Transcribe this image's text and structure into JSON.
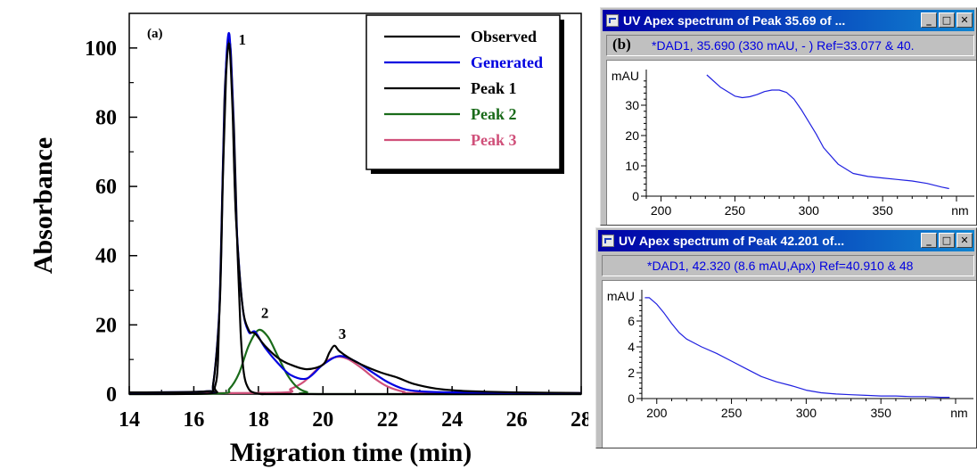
{
  "chart_data": [
    {
      "type": "line",
      "panel_label": "(a)",
      "xlabel": "Migration time (min)",
      "ylabel": "Absorbance",
      "xlim": [
        14,
        28
      ],
      "ylim": [
        0,
        110
      ],
      "xticks": [
        14,
        16,
        18,
        20,
        22,
        24,
        26,
        28
      ],
      "yticks": [
        0,
        20,
        40,
        60,
        80,
        100
      ],
      "legend_position": "top-right",
      "peak_labels": [
        {
          "text": "1",
          "x": 17.5,
          "y": 101
        },
        {
          "text": "2",
          "x": 18.2,
          "y": 22
        },
        {
          "text": "3",
          "x": 20.6,
          "y": 16
        }
      ],
      "series": [
        {
          "name": "Observed",
          "color": "#000000",
          "x": [
            14,
            16.4,
            16.6,
            16.8,
            16.9,
            17.0,
            17.1,
            17.2,
            17.3,
            17.5,
            17.7,
            17.9,
            18.2,
            18.6,
            19.0,
            19.5,
            20.0,
            20.2,
            20.35,
            20.5,
            20.8,
            21.2,
            21.8,
            22.3,
            22.8,
            23.5,
            24.2,
            25.0,
            26.0,
            28.0
          ],
          "y": [
            0.5,
            0.8,
            3,
            25,
            62,
            92,
            101,
            82,
            52,
            26,
            18.5,
            17.5,
            14,
            10.5,
            8.5,
            7.2,
            8.5,
            12,
            14,
            12.5,
            10.5,
            8.5,
            6.2,
            4.8,
            3,
            1.6,
            1.0,
            0.7,
            0.5,
            0.3
          ]
        },
        {
          "name": "Generated",
          "color": "#0000e0",
          "x": [
            14,
            16.4,
            16.6,
            16.8,
            16.9,
            17.0,
            17.1,
            17.2,
            17.3,
            17.5,
            17.7,
            17.9,
            18.2,
            18.6,
            19.0,
            19.5,
            20.0,
            20.5,
            21.0,
            21.5,
            22.0,
            22.5,
            23.0,
            24.0,
            28.0
          ],
          "y": [
            0.5,
            0.8,
            3,
            26,
            64,
            95,
            104,
            85,
            53,
            26,
            18,
            18,
            13.5,
            9,
            5.5,
            4.5,
            8.5,
            11,
            9.5,
            6.5,
            3.5,
            1.5,
            0.8,
            0.5,
            0.3
          ]
        },
        {
          "name": "Peak 1",
          "color": "#000000",
          "x": [
            14,
            16.5,
            16.65,
            16.75,
            16.85,
            16.95,
            17.05,
            17.1,
            17.15,
            17.25,
            17.35,
            17.45,
            17.55,
            17.7,
            17.9,
            18.2,
            19.0,
            28.0
          ],
          "y": [
            0,
            0.2,
            2,
            10,
            45,
            85,
            101,
            102,
            98,
            75,
            42,
            18,
            6,
            1.5,
            0.3,
            0,
            0,
            0
          ]
        },
        {
          "name": "Peak 2",
          "color": "#1a6b1a",
          "x": [
            14,
            16.8,
            17.1,
            17.4,
            17.7,
            18.0,
            18.3,
            18.6,
            18.9,
            19.2,
            19.5,
            20.0,
            28.0
          ],
          "y": [
            0,
            0.2,
            1.5,
            6,
            14,
            18.5,
            16.5,
            11,
            5.5,
            2,
            0.6,
            0,
            0
          ]
        },
        {
          "name": "Peak 3",
          "color": "#d0507a",
          "x": [
            14,
            18.6,
            19.0,
            19.4,
            19.8,
            20.2,
            20.5,
            20.8,
            21.2,
            21.6,
            22.0,
            22.5,
            23.0,
            28.0
          ],
          "y": [
            0.3,
            0.4,
            1.5,
            3.5,
            7,
            10,
            10.8,
            10,
            7.5,
            4.5,
            2.2,
            0.7,
            0.3,
            0.3
          ]
        }
      ]
    },
    {
      "type": "line",
      "panel_label": "(b)",
      "ylabel": "mAU",
      "xlabel": "nm",
      "xlim": [
        190,
        400
      ],
      "ylim": [
        0,
        40
      ],
      "xticks": [
        200,
        250,
        300,
        350
      ],
      "yticks": [
        0,
        10,
        20,
        30
      ],
      "series": [
        {
          "name": "",
          "color": "#2020e0",
          "x": [
            231,
            240,
            250,
            255,
            260,
            265,
            270,
            275,
            280,
            285,
            290,
            295,
            300,
            305,
            310,
            320,
            330,
            340,
            350,
            360,
            370,
            380,
            390,
            395
          ],
          "y": [
            40,
            36,
            33,
            32.5,
            32.8,
            33.5,
            34.5,
            35,
            35,
            34.2,
            32,
            28.5,
            24.5,
            20.5,
            16,
            10.5,
            7.5,
            6.5,
            6,
            5.5,
            5,
            4.2,
            3,
            2.5
          ]
        }
      ]
    },
    {
      "type": "line",
      "ylabel": "mAU",
      "xlabel": "nm",
      "xlim": [
        190,
        400
      ],
      "ylim": [
        0,
        8
      ],
      "xticks": [
        200,
        250,
        300,
        350
      ],
      "yticks": [
        0,
        2,
        4,
        6
      ],
      "series": [
        {
          "name": "",
          "color": "#2020e0",
          "x": [
            192,
            195,
            200,
            205,
            210,
            215,
            220,
            230,
            240,
            250,
            260,
            270,
            280,
            290,
            300,
            310,
            320,
            330,
            340,
            350,
            360,
            370,
            380,
            390,
            396
          ],
          "y": [
            7.8,
            7.8,
            7.3,
            6.6,
            5.8,
            5.1,
            4.6,
            4.0,
            3.5,
            2.9,
            2.3,
            1.7,
            1.3,
            1.0,
            0.65,
            0.45,
            0.35,
            0.3,
            0.25,
            0.2,
            0.2,
            0.15,
            0.15,
            0.1,
            0.1
          ]
        }
      ]
    }
  ],
  "windows": [
    {
      "title": "UV Apex spectrum of Peak 35.69 of ...",
      "tag": "(b)",
      "info": "*DAD1, 35.690 (330 mAU, - ) Ref=33.077 & 40.",
      "buttons": {
        "minimize": "_",
        "maximize": "□",
        "close": "✕"
      }
    },
    {
      "title": "UV Apex spectrum of Peak 42.201 of...",
      "tag": "",
      "info": "*DAD1, 42.320 (8.6 mAU,Apx) Ref=40.910 & 48",
      "buttons": {
        "minimize": "_",
        "maximize": "□",
        "close": "✕"
      }
    }
  ],
  "colors": {
    "observed": "#000000",
    "generated": "#0000e0",
    "peak1": "#000000",
    "peak2": "#1a6b1a",
    "peak3": "#d0507a",
    "spectrum": "#2020e0",
    "window_frame": "#c0c0c0",
    "title_bar": "#0000a8"
  }
}
